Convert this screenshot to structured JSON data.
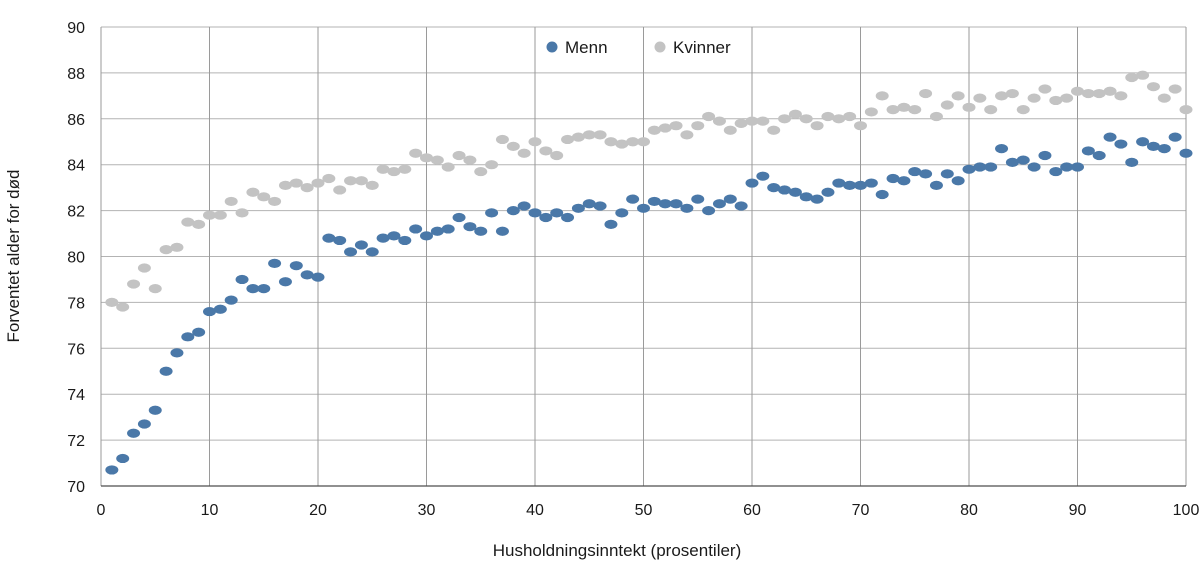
{
  "chart_data": {
    "type": "scatter",
    "title": "",
    "xlabel": "Husholdningsinntekt (prosentiler)",
    "ylabel": "Forventet alder for død",
    "xlim": [
      0,
      100
    ],
    "ylim": [
      70,
      90
    ],
    "xticks": [
      0,
      10,
      20,
      30,
      40,
      50,
      60,
      70,
      80,
      90,
      100
    ],
    "yticks": [
      70,
      72,
      74,
      76,
      78,
      80,
      82,
      84,
      86,
      88,
      90
    ],
    "grid": true,
    "legend_position": "top-center",
    "x": [
      1,
      2,
      3,
      4,
      5,
      6,
      7,
      8,
      9,
      10,
      11,
      12,
      13,
      14,
      15,
      16,
      17,
      18,
      19,
      20,
      21,
      22,
      23,
      24,
      25,
      26,
      27,
      28,
      29,
      30,
      31,
      32,
      33,
      34,
      35,
      36,
      37,
      38,
      39,
      40,
      41,
      42,
      43,
      44,
      45,
      46,
      47,
      48,
      49,
      50,
      51,
      52,
      53,
      54,
      55,
      56,
      57,
      58,
      59,
      60,
      61,
      62,
      63,
      64,
      65,
      66,
      67,
      68,
      69,
      70,
      71,
      72,
      73,
      74,
      75,
      76,
      77,
      78,
      79,
      80,
      81,
      82,
      83,
      84,
      85,
      86,
      87,
      88,
      89,
      90,
      91,
      92,
      93,
      94,
      95,
      96,
      97,
      98,
      99,
      100
    ],
    "series": [
      {
        "name": "Menn",
        "color": "#4a78a8",
        "values": [
          70.7,
          71.2,
          72.3,
          72.7,
          73.3,
          75.0,
          75.8,
          76.5,
          76.7,
          77.6,
          77.7,
          78.1,
          79.0,
          78.6,
          78.6,
          79.7,
          78.9,
          79.6,
          79.2,
          79.1,
          80.8,
          80.7,
          80.2,
          80.5,
          80.2,
          80.8,
          80.9,
          80.7,
          81.2,
          80.9,
          81.1,
          81.2,
          81.7,
          81.3,
          81.1,
          81.9,
          81.1,
          82.0,
          82.2,
          81.9,
          81.7,
          81.9,
          81.7,
          82.1,
          82.3,
          82.2,
          81.4,
          81.9,
          82.5,
          82.1,
          82.4,
          82.3,
          82.3,
          82.1,
          82.5,
          82.0,
          82.3,
          82.5,
          82.2,
          83.2,
          83.5,
          83.0,
          82.9,
          82.8,
          82.6,
          82.5,
          82.8,
          83.2,
          83.1,
          83.1,
          83.2,
          82.7,
          83.4,
          83.3,
          83.7,
          83.6,
          83.1,
          83.6,
          83.3,
          83.8,
          83.9,
          83.9,
          84.7,
          84.1,
          84.2,
          83.9,
          84.4,
          83.7,
          83.9,
          83.9,
          84.6,
          84.4,
          85.2,
          84.9,
          84.1,
          85.0,
          84.8,
          84.7,
          85.2,
          84.5
        ]
      },
      {
        "name": "Kvinner",
        "color": "#c3c3c3",
        "values": [
          78.0,
          77.8,
          78.8,
          79.5,
          78.6,
          80.3,
          80.4,
          81.5,
          81.4,
          81.8,
          81.8,
          82.4,
          81.9,
          82.8,
          82.6,
          82.4,
          83.1,
          83.2,
          83.0,
          83.2,
          83.4,
          82.9,
          83.3,
          83.3,
          83.1,
          83.8,
          83.7,
          83.8,
          84.5,
          84.3,
          84.2,
          83.9,
          84.4,
          84.2,
          83.7,
          84.0,
          85.1,
          84.8,
          84.5,
          85.0,
          84.6,
          84.4,
          85.1,
          85.2,
          85.3,
          85.3,
          85.0,
          84.9,
          85.0,
          85.0,
          85.5,
          85.6,
          85.7,
          85.3,
          85.7,
          86.1,
          85.9,
          85.5,
          85.8,
          85.9,
          85.9,
          85.5,
          86.0,
          86.2,
          86.0,
          85.7,
          86.1,
          86.0,
          86.1,
          85.7,
          86.3,
          87.0,
          86.4,
          86.5,
          86.4,
          87.1,
          86.1,
          86.6,
          87.0,
          86.5,
          86.9,
          86.4,
          87.0,
          87.1,
          86.4,
          86.9,
          87.3,
          86.8,
          86.9,
          87.2,
          87.1,
          87.1,
          87.2,
          87.0,
          87.8,
          87.9,
          87.4,
          86.9,
          87.3,
          86.4
        ]
      }
    ]
  }
}
